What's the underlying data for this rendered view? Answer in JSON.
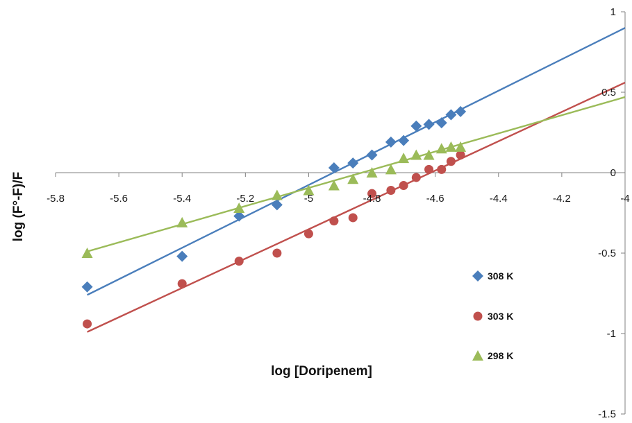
{
  "chart_data": {
    "type": "scatter",
    "title": "",
    "xlabel": "log [Doripenem]",
    "ylabel": "log (F°-F)/F",
    "xlim": [
      -5.8,
      -4.0
    ],
    "ylim": [
      -1.5,
      1.0
    ],
    "x_ticks": [
      -5.8,
      -5.6,
      -5.4,
      -5.2,
      -5.0,
      -4.8,
      -4.6,
      -4.4,
      -4.2,
      -4.0
    ],
    "x_tick_labels": [
      "-5.8",
      "-5.6",
      "-5.4",
      "-5.2",
      "-5",
      "-4.8",
      "-4.6",
      "-4.4",
      "-4.2",
      "-4"
    ],
    "y_ticks": [
      1.0,
      0.5,
      0.0,
      -0.5,
      -1.0,
      -1.5
    ],
    "y_tick_labels": [
      "1",
      "0.5",
      "0",
      "-0.5",
      "-1",
      "-1.5"
    ],
    "grid": false,
    "legend_position": "right",
    "series": [
      {
        "name": "308 K",
        "color": "#4a7ebb",
        "marker": "diamond",
        "x": [
          -5.7,
          -5.4,
          -5.22,
          -5.1,
          -4.92,
          -4.86,
          -4.8,
          -4.74,
          -4.7,
          -4.66,
          -4.62,
          -4.58,
          -4.55,
          -4.52
        ],
        "y": [
          -0.71,
          -0.52,
          -0.27,
          -0.2,
          0.03,
          0.06,
          0.11,
          0.19,
          0.2,
          0.29,
          0.3,
          0.31,
          0.36,
          0.38
        ],
        "fit": {
          "x": [
            -5.7,
            -4.0
          ],
          "y": [
            -0.76,
            0.9
          ]
        }
      },
      {
        "name": "303 K",
        "color": "#c0504d",
        "marker": "circle",
        "x": [
          -5.7,
          -5.4,
          -5.22,
          -5.1,
          -5.0,
          -4.92,
          -4.86,
          -4.8,
          -4.74,
          -4.7,
          -4.66,
          -4.62,
          -4.58,
          -4.55,
          -4.52
        ],
        "y": [
          -0.94,
          -0.69,
          -0.55,
          -0.5,
          -0.38,
          -0.3,
          -0.28,
          -0.13,
          -0.11,
          -0.08,
          -0.03,
          0.02,
          0.02,
          0.07,
          0.11
        ],
        "fit": {
          "x": [
            -5.7,
            -4.0
          ],
          "y": [
            -0.99,
            0.56
          ]
        }
      },
      {
        "name": "298 K",
        "color": "#9bbb59",
        "marker": "triangle",
        "x": [
          -5.7,
          -5.4,
          -5.22,
          -5.1,
          -5.0,
          -4.92,
          -4.86,
          -4.8,
          -4.74,
          -4.7,
          -4.66,
          -4.62,
          -4.58,
          -4.55,
          -4.52
        ],
        "y": [
          -0.5,
          -0.31,
          -0.22,
          -0.14,
          -0.11,
          -0.08,
          -0.04,
          0.0,
          0.02,
          0.09,
          0.11,
          0.11,
          0.15,
          0.16,
          0.16
        ],
        "fit": {
          "x": [
            -5.7,
            -4.0
          ],
          "y": [
            -0.49,
            0.47
          ]
        }
      }
    ]
  }
}
